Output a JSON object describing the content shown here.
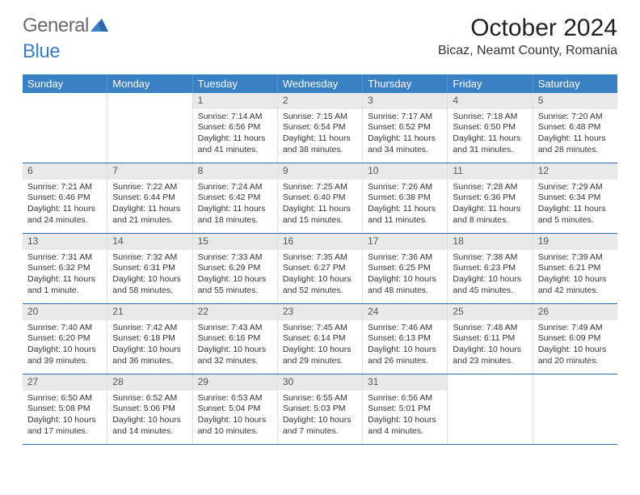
{
  "logo": {
    "gray": "General",
    "blue": "Blue"
  },
  "title": "October 2024",
  "location": "Bicaz, Neamt County, Romania",
  "colors": {
    "header_bg": "#3a80c4",
    "row_divider": "#2e6aa8",
    "date_bar_bg": "#e9e9e9",
    "logo_gray": "#6b6b6b",
    "logo_blue": "#3a7fc4"
  },
  "days_of_week": [
    "Sunday",
    "Monday",
    "Tuesday",
    "Wednesday",
    "Thursday",
    "Friday",
    "Saturday"
  ],
  "weeks": [
    [
      {
        "date": "",
        "sunrise": "",
        "sunset": "",
        "daylight": ""
      },
      {
        "date": "",
        "sunrise": "",
        "sunset": "",
        "daylight": ""
      },
      {
        "date": "1",
        "sunrise": "Sunrise: 7:14 AM",
        "sunset": "Sunset: 6:56 PM",
        "daylight": "Daylight: 11 hours and 41 minutes."
      },
      {
        "date": "2",
        "sunrise": "Sunrise: 7:15 AM",
        "sunset": "Sunset: 6:54 PM",
        "daylight": "Daylight: 11 hours and 38 minutes."
      },
      {
        "date": "3",
        "sunrise": "Sunrise: 7:17 AM",
        "sunset": "Sunset: 6:52 PM",
        "daylight": "Daylight: 11 hours and 34 minutes."
      },
      {
        "date": "4",
        "sunrise": "Sunrise: 7:18 AM",
        "sunset": "Sunset: 6:50 PM",
        "daylight": "Daylight: 11 hours and 31 minutes."
      },
      {
        "date": "5",
        "sunrise": "Sunrise: 7:20 AM",
        "sunset": "Sunset: 6:48 PM",
        "daylight": "Daylight: 11 hours and 28 minutes."
      }
    ],
    [
      {
        "date": "6",
        "sunrise": "Sunrise: 7:21 AM",
        "sunset": "Sunset: 6:46 PM",
        "daylight": "Daylight: 11 hours and 24 minutes."
      },
      {
        "date": "7",
        "sunrise": "Sunrise: 7:22 AM",
        "sunset": "Sunset: 6:44 PM",
        "daylight": "Daylight: 11 hours and 21 minutes."
      },
      {
        "date": "8",
        "sunrise": "Sunrise: 7:24 AM",
        "sunset": "Sunset: 6:42 PM",
        "daylight": "Daylight: 11 hours and 18 minutes."
      },
      {
        "date": "9",
        "sunrise": "Sunrise: 7:25 AM",
        "sunset": "Sunset: 6:40 PM",
        "daylight": "Daylight: 11 hours and 15 minutes."
      },
      {
        "date": "10",
        "sunrise": "Sunrise: 7:26 AM",
        "sunset": "Sunset: 6:38 PM",
        "daylight": "Daylight: 11 hours and 11 minutes."
      },
      {
        "date": "11",
        "sunrise": "Sunrise: 7:28 AM",
        "sunset": "Sunset: 6:36 PM",
        "daylight": "Daylight: 11 hours and 8 minutes."
      },
      {
        "date": "12",
        "sunrise": "Sunrise: 7:29 AM",
        "sunset": "Sunset: 6:34 PM",
        "daylight": "Daylight: 11 hours and 5 minutes."
      }
    ],
    [
      {
        "date": "13",
        "sunrise": "Sunrise: 7:31 AM",
        "sunset": "Sunset: 6:32 PM",
        "daylight": "Daylight: 11 hours and 1 minute."
      },
      {
        "date": "14",
        "sunrise": "Sunrise: 7:32 AM",
        "sunset": "Sunset: 6:31 PM",
        "daylight": "Daylight: 10 hours and 58 minutes."
      },
      {
        "date": "15",
        "sunrise": "Sunrise: 7:33 AM",
        "sunset": "Sunset: 6:29 PM",
        "daylight": "Daylight: 10 hours and 55 minutes."
      },
      {
        "date": "16",
        "sunrise": "Sunrise: 7:35 AM",
        "sunset": "Sunset: 6:27 PM",
        "daylight": "Daylight: 10 hours and 52 minutes."
      },
      {
        "date": "17",
        "sunrise": "Sunrise: 7:36 AM",
        "sunset": "Sunset: 6:25 PM",
        "daylight": "Daylight: 10 hours and 48 minutes."
      },
      {
        "date": "18",
        "sunrise": "Sunrise: 7:38 AM",
        "sunset": "Sunset: 6:23 PM",
        "daylight": "Daylight: 10 hours and 45 minutes."
      },
      {
        "date": "19",
        "sunrise": "Sunrise: 7:39 AM",
        "sunset": "Sunset: 6:21 PM",
        "daylight": "Daylight: 10 hours and 42 minutes."
      }
    ],
    [
      {
        "date": "20",
        "sunrise": "Sunrise: 7:40 AM",
        "sunset": "Sunset: 6:20 PM",
        "daylight": "Daylight: 10 hours and 39 minutes."
      },
      {
        "date": "21",
        "sunrise": "Sunrise: 7:42 AM",
        "sunset": "Sunset: 6:18 PM",
        "daylight": "Daylight: 10 hours and 36 minutes."
      },
      {
        "date": "22",
        "sunrise": "Sunrise: 7:43 AM",
        "sunset": "Sunset: 6:16 PM",
        "daylight": "Daylight: 10 hours and 32 minutes."
      },
      {
        "date": "23",
        "sunrise": "Sunrise: 7:45 AM",
        "sunset": "Sunset: 6:14 PM",
        "daylight": "Daylight: 10 hours and 29 minutes."
      },
      {
        "date": "24",
        "sunrise": "Sunrise: 7:46 AM",
        "sunset": "Sunset: 6:13 PM",
        "daylight": "Daylight: 10 hours and 26 minutes."
      },
      {
        "date": "25",
        "sunrise": "Sunrise: 7:48 AM",
        "sunset": "Sunset: 6:11 PM",
        "daylight": "Daylight: 10 hours and 23 minutes."
      },
      {
        "date": "26",
        "sunrise": "Sunrise: 7:49 AM",
        "sunset": "Sunset: 6:09 PM",
        "daylight": "Daylight: 10 hours and 20 minutes."
      }
    ],
    [
      {
        "date": "27",
        "sunrise": "Sunrise: 6:50 AM",
        "sunset": "Sunset: 5:08 PM",
        "daylight": "Daylight: 10 hours and 17 minutes."
      },
      {
        "date": "28",
        "sunrise": "Sunrise: 6:52 AM",
        "sunset": "Sunset: 5:06 PM",
        "daylight": "Daylight: 10 hours and 14 minutes."
      },
      {
        "date": "29",
        "sunrise": "Sunrise: 6:53 AM",
        "sunset": "Sunset: 5:04 PM",
        "daylight": "Daylight: 10 hours and 10 minutes."
      },
      {
        "date": "30",
        "sunrise": "Sunrise: 6:55 AM",
        "sunset": "Sunset: 5:03 PM",
        "daylight": "Daylight: 10 hours and 7 minutes."
      },
      {
        "date": "31",
        "sunrise": "Sunrise: 6:56 AM",
        "sunset": "Sunset: 5:01 PM",
        "daylight": "Daylight: 10 hours and 4 minutes."
      },
      {
        "date": "",
        "sunrise": "",
        "sunset": "",
        "daylight": ""
      },
      {
        "date": "",
        "sunrise": "",
        "sunset": "",
        "daylight": ""
      }
    ]
  ]
}
